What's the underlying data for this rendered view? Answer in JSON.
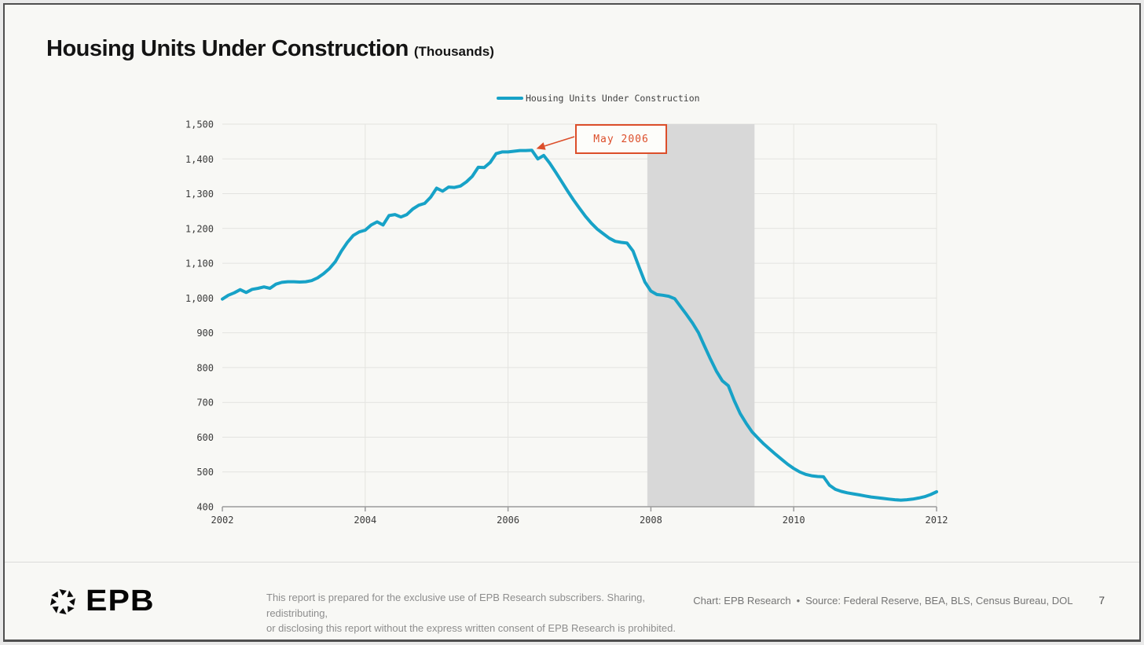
{
  "page": {
    "title_main": "Housing Units Under Construction",
    "title_unit": "(Thousands)"
  },
  "chart_data": {
    "type": "line",
    "title": "Housing Units Under Construction (Thousands)",
    "xlim": [
      2002,
      2012
    ],
    "ylim": [
      400,
      1500
    ],
    "x_ticks": [
      2002,
      2004,
      2006,
      2008,
      2010,
      2012
    ],
    "y_ticks": [
      400,
      500,
      600,
      700,
      800,
      900,
      1000,
      1100,
      1200,
      1300,
      1400,
      1500
    ],
    "grid": true,
    "legend_position": "top-center",
    "x_start_year": 2002,
    "x_interval_months": 1,
    "colors": {
      "grid": "#e3e3e0",
      "axis": "#9b9b9b",
      "tick_text": "#3b3b3b",
      "background": "#f8f8f5"
    },
    "shaded_region": {
      "start_year": 2007.95,
      "end_year": 2009.45,
      "color": "#d8d8d8"
    },
    "annotation": {
      "text": "May 2006",
      "target_year": 2006.33,
      "target_value": 1425,
      "color": "#dc4e2a"
    },
    "series": [
      {
        "name": "Housing Units Under Construction",
        "color": "#17a2c7",
        "values": [
          997,
          1008,
          1015,
          1024,
          1016,
          1025,
          1028,
          1032,
          1028,
          1040,
          1045,
          1047,
          1047,
          1046,
          1047,
          1050,
          1058,
          1070,
          1085,
          1105,
          1135,
          1160,
          1180,
          1190,
          1195,
          1210,
          1219,
          1210,
          1237,
          1240,
          1233,
          1240,
          1256,
          1267,
          1272,
          1290,
          1316,
          1307,
          1319,
          1318,
          1322,
          1334,
          1350,
          1376,
          1375,
          1390,
          1415,
          1420,
          1420,
          1422,
          1424,
          1424,
          1425,
          1400,
          1410,
          1388,
          1362,
          1335,
          1308,
          1282,
          1258,
          1235,
          1215,
          1198,
          1185,
          1172,
          1163,
          1160,
          1158,
          1135,
          1090,
          1046,
          1020,
          1010,
          1008,
          1005,
          998,
          975,
          952,
          928,
          900,
          862,
          825,
          790,
          762,
          748,
          705,
          668,
          640,
          615,
          597,
          580,
          565,
          550,
          536,
          522,
          510,
          500,
          493,
          489,
          487,
          486,
          462,
          450,
          444,
          440,
          437,
          434,
          431,
          428,
          426,
          424,
          422,
          420,
          419,
          420,
          422,
          425,
          429,
          435,
          443
        ]
      }
    ]
  },
  "footer": {
    "logo_text": "EPB",
    "disclaimer_line1": "This report is prepared for the exclusive use of EPB Research subscribers. Sharing, redistributing,",
    "disclaimer_line2": "or disclosing this report without the express written consent of EPB Research is prohibited.",
    "attribution_chart": "Chart: EPB Research",
    "attribution_separator": "•",
    "attribution_source": "Source: Federal Reserve, BEA, BLS, Census Bureau, DOL",
    "page_number": "7"
  }
}
